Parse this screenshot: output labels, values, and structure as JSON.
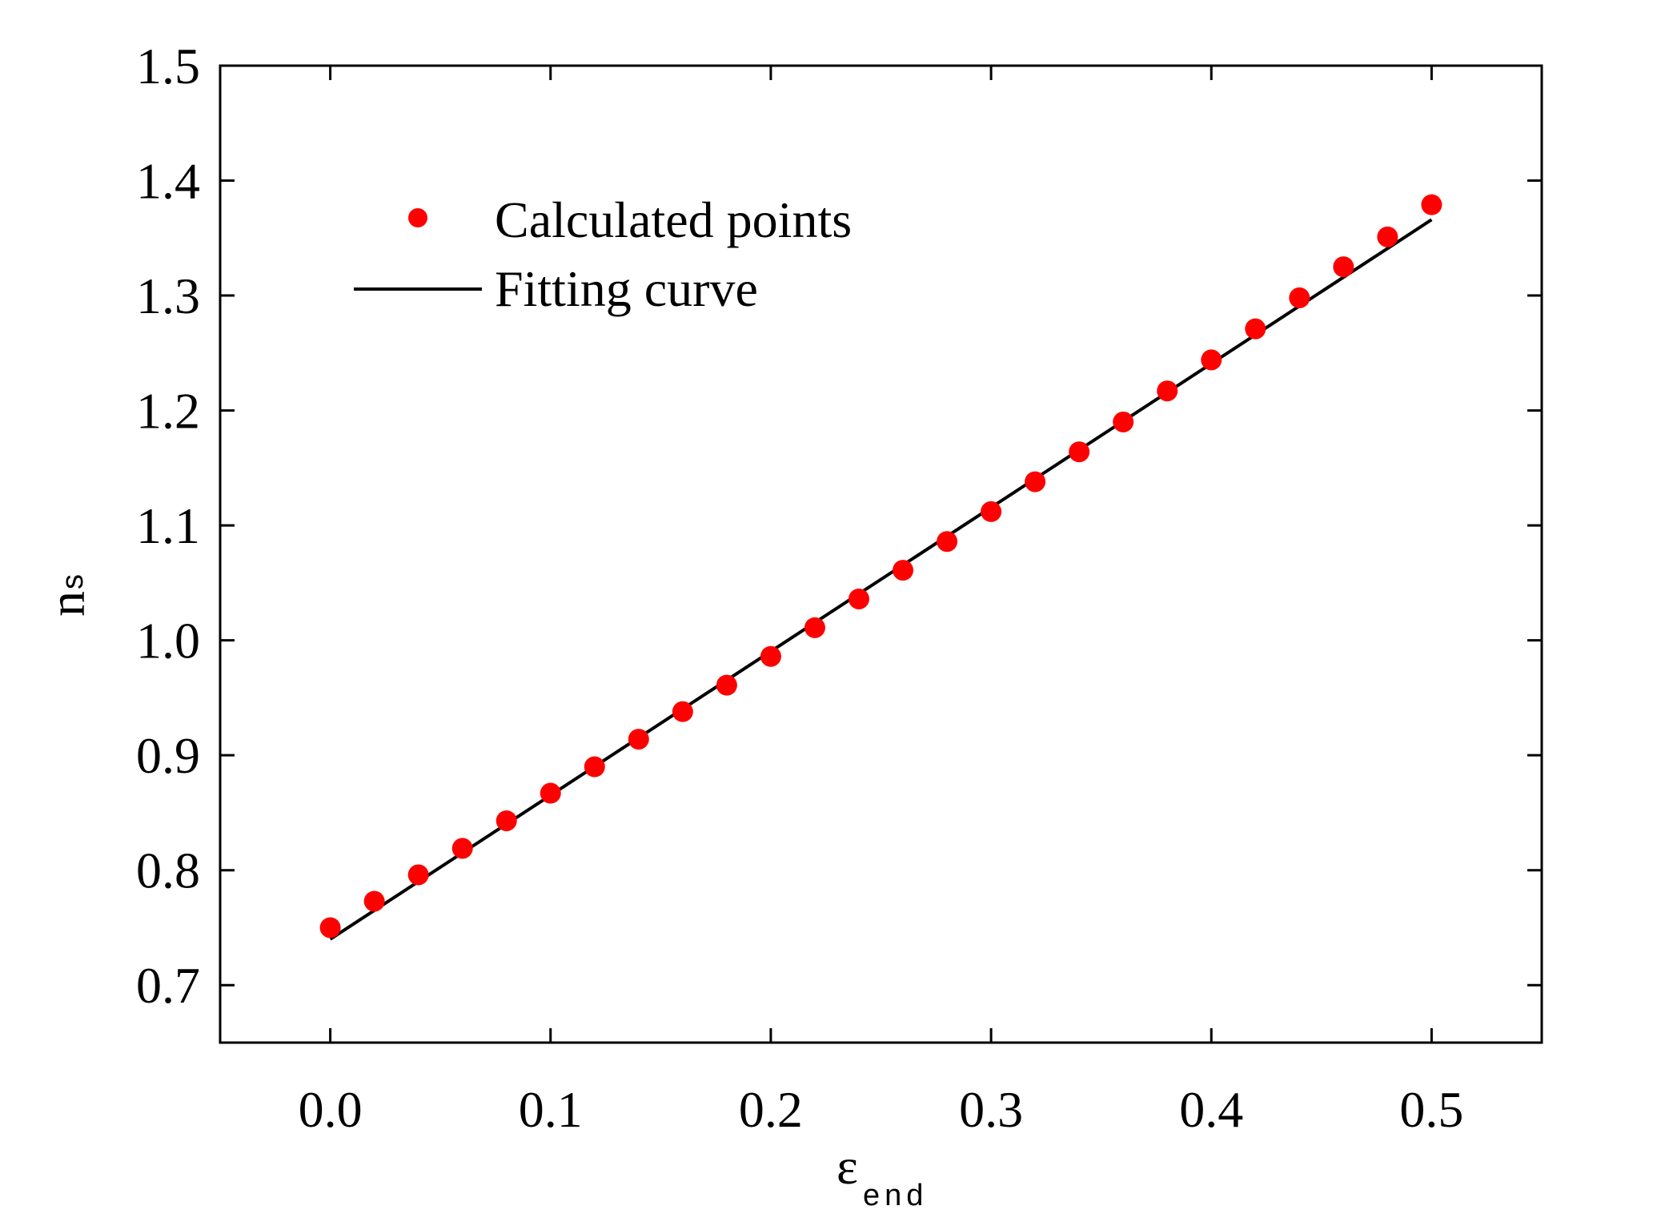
{
  "chart_data": {
    "type": "scatter",
    "title": "",
    "xlabel": {
      "main": "ε",
      "sub": "end"
    },
    "ylabel": {
      "main": "n",
      "sub": "s"
    },
    "xlim": [
      -0.05,
      0.55
    ],
    "ylim": [
      0.65,
      1.5
    ],
    "x_ticks": [
      "0.0",
      "0.1",
      "0.2",
      "0.3",
      "0.4",
      "0.5"
    ],
    "x_tick_values": [
      0.0,
      0.1,
      0.2,
      0.3,
      0.4,
      0.5
    ],
    "y_ticks": [
      "0.7",
      "0.8",
      "0.9",
      "1.0",
      "1.1",
      "1.2",
      "1.3",
      "1.4",
      "1.5"
    ],
    "y_tick_values": [
      0.7,
      0.8,
      0.9,
      1.0,
      1.1,
      1.2,
      1.3,
      1.4,
      1.5
    ],
    "grid": false,
    "legend_position": "top-left",
    "series": [
      {
        "name": "Calculated points",
        "kind": "scatter",
        "color": "#ff0000",
        "x": [
          0.0,
          0.02,
          0.04,
          0.06,
          0.08,
          0.1,
          0.12,
          0.14,
          0.16,
          0.18,
          0.2,
          0.22,
          0.24,
          0.26,
          0.28,
          0.3,
          0.32,
          0.34,
          0.36,
          0.38,
          0.4,
          0.42,
          0.44,
          0.46,
          0.48,
          0.5
        ],
        "y": [
          0.75,
          0.773,
          0.796,
          0.819,
          0.843,
          0.867,
          0.89,
          0.914,
          0.938,
          0.961,
          0.986,
          1.011,
          1.036,
          1.061,
          1.086,
          1.112,
          1.138,
          1.164,
          1.19,
          1.217,
          1.244,
          1.271,
          1.298,
          1.325,
          1.351,
          1.379
        ]
      },
      {
        "name": "Fitting curve",
        "kind": "line",
        "color": "#000000",
        "x": [
          0.0,
          0.5
        ],
        "y": [
          0.74,
          1.366
        ]
      }
    ]
  }
}
